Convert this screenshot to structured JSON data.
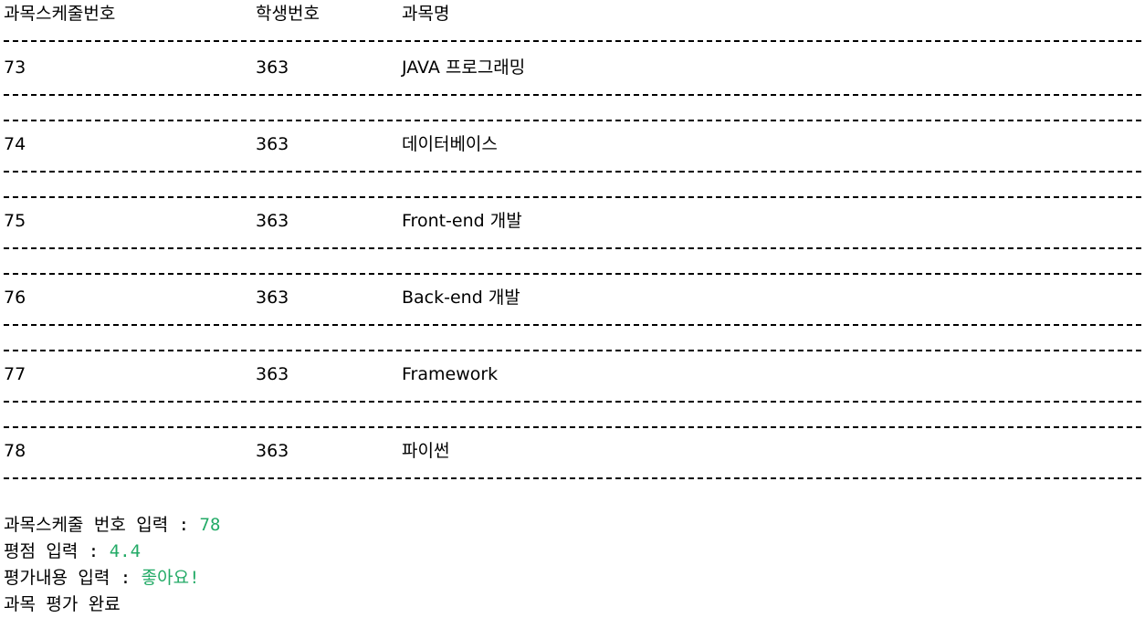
{
  "table": {
    "headers": [
      "과목스케줄번호",
      "학생번호",
      "과목명"
    ],
    "rows": [
      {
        "schedule_no": "73",
        "student_no": "363",
        "subject": "JAVA 프로그래밍"
      },
      {
        "schedule_no": "74",
        "student_no": "363",
        "subject": "데이터베이스"
      },
      {
        "schedule_no": "75",
        "student_no": "363",
        "subject": "Front-end 개발"
      },
      {
        "schedule_no": "76",
        "student_no": "363",
        "subject": "Back-end 개발"
      },
      {
        "schedule_no": "77",
        "student_no": "363",
        "subject": "Framework"
      },
      {
        "schedule_no": "78",
        "student_no": "363",
        "subject": "파이썬"
      }
    ]
  },
  "prompts": {
    "schedule_label": "과목스케줄 번호 입력 : ",
    "schedule_value": "78",
    "score_label": "평점 입력 : ",
    "score_value": "4.4",
    "review_label": "평가내용 입력 : ",
    "review_value": "좋아요!",
    "done_message": "과목 평가 완료"
  },
  "colors": {
    "input_text": "#22aa66"
  }
}
